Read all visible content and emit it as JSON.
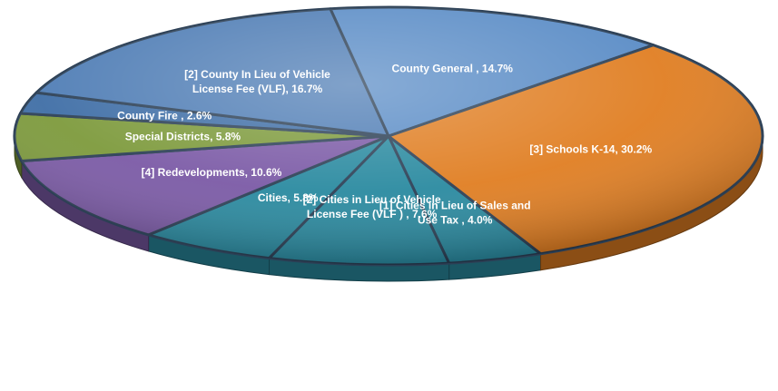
{
  "chart_data": {
    "type": "pie",
    "slices": [
      {
        "label": "[1] Cities in Lieu of Sales and Use Tax , 4.0%",
        "value": 4.0,
        "color": "#2a8aa0",
        "lines": [
          "[1] Cities in Lieu of Sales and",
          "Use Tax , 4.0%"
        ]
      },
      {
        "label": "[2] Cities in Lieu of Vehicle License Fee (VLF) , 7.6%",
        "value": 7.6,
        "color": "#2a8aa0",
        "lines": [
          "[2] Cities in Lieu of Vehicle",
          "License Fee (VLF ) , 7.6%"
        ]
      },
      {
        "label": "Cities, 5.8%",
        "value": 5.8,
        "color": "#2a8aa0",
        "lines": [
          "Cities, 5.8%"
        ]
      },
      {
        "label": "[4] Redevelopments, 10.6%",
        "value": 10.6,
        "color": "#7b5aa6",
        "lines": [
          "[4] Redevelopments, 10.6%"
        ]
      },
      {
        "label": "Special Districts, 5.8%",
        "value": 5.8,
        "color": "#7d9a3c",
        "lines": [
          "Special Districts, 5.8%"
        ]
      },
      {
        "label": "County Fire , 2.6%",
        "value": 2.6,
        "color": "#3f6ea6",
        "lines": [
          "County Fire , 2.6%"
        ]
      },
      {
        "label": "[2] County In Lieu of Vehicle License Fee (VLF), 16.7%",
        "value": 16.7,
        "color": "#4f7db5",
        "lines": [
          "[2] County In Lieu of Vehicle",
          "License Fee (VLF), 16.7%"
        ]
      },
      {
        "label": "County General , 14.7%",
        "value": 14.7,
        "color": "#5a8cc6",
        "lines": [
          "County General , 14.7%"
        ]
      },
      {
        "label": "[3] Schools K-14, 30.2%",
        "value": 30.2,
        "color": "#e07e22",
        "lines": [
          "[3] Schools K-14, 30.2%"
        ]
      }
    ],
    "title": "",
    "legend": "none"
  }
}
